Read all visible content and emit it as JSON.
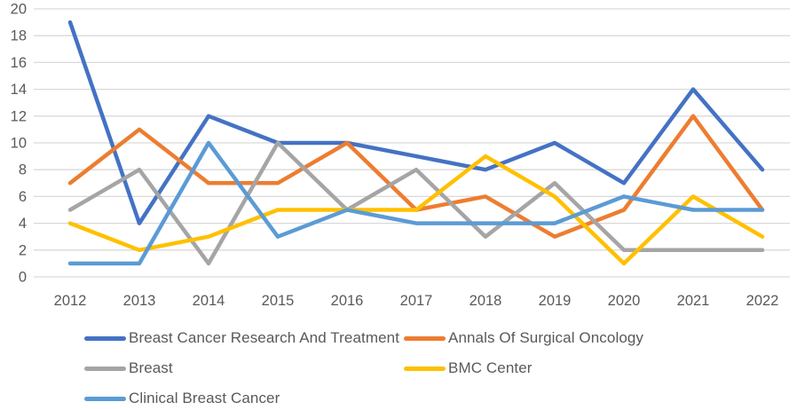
{
  "chart_data": {
    "type": "line",
    "title": "",
    "xlabel": "",
    "ylabel": "",
    "categories": [
      "2012",
      "2013",
      "2014",
      "2015",
      "2016",
      "2017",
      "2018",
      "2019",
      "2020",
      "2021",
      "2022"
    ],
    "series": [
      {
        "name": "Breast Cancer Research And Treatment",
        "color": "#4472C4",
        "values": [
          19,
          4,
          12,
          10,
          10,
          9,
          8,
          10,
          7,
          14,
          8
        ]
      },
      {
        "name": "Annals Of Surgical Oncology",
        "color": "#ED7D31",
        "values": [
          7,
          11,
          7,
          7,
          10,
          5,
          6,
          3,
          5,
          12,
          5
        ]
      },
      {
        "name": "Breast",
        "color": "#A5A5A5",
        "values": [
          5,
          8,
          1,
          10,
          5,
          8,
          3,
          7,
          2,
          2,
          2
        ]
      },
      {
        "name": "BMC Center",
        "color": "#FFC000",
        "values": [
          4,
          2,
          3,
          5,
          5,
          5,
          9,
          6,
          1,
          6,
          3
        ]
      },
      {
        "name": "Clinical Breast Cancer",
        "color": "#5B9BD5",
        "values": [
          1,
          1,
          10,
          3,
          5,
          4,
          4,
          4,
          6,
          5,
          5
        ]
      }
    ],
    "ylim": [
      0,
      20
    ],
    "y_ticks": [
      0,
      2,
      4,
      6,
      8,
      10,
      12,
      14,
      16,
      18,
      20
    ],
    "grid": "horizontal",
    "legend_position": "bottom, two columns, three rows",
    "colors": {
      "gridline": "#D9D9D9",
      "axis_text": "#595959",
      "background": "#FFFFFF"
    }
  }
}
